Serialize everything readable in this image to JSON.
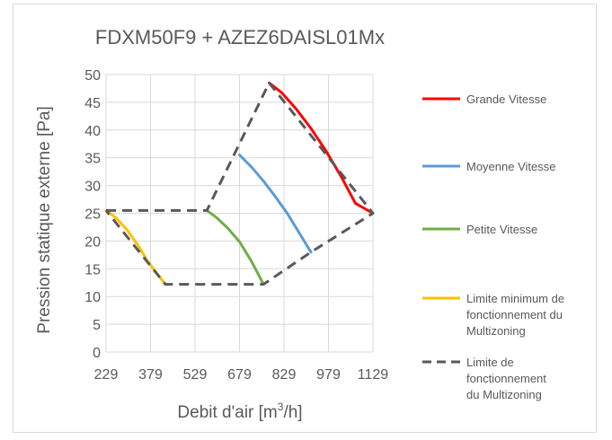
{
  "chart_data": {
    "type": "line",
    "title": "FDXM50F9 + AZEZ6DAISL01Mx",
    "xlabel": "Debit d'air [m3/h]",
    "xlabel_main": "Debit d'air [m",
    "xlabel_sup": "3",
    "xlabel_end": "/h]",
    "ylabel": "Pression statique externe [Pa]",
    "xlim": [
      229,
      1129
    ],
    "ylim": [
      0,
      50
    ],
    "xticks": [
      229,
      379,
      529,
      679,
      829,
      979,
      1129
    ],
    "yticks": [
      0,
      5,
      10,
      15,
      20,
      25,
      30,
      35,
      40,
      45,
      50
    ],
    "grid": true,
    "legend_position": "right",
    "series": [
      {
        "name": "Grande Vitesse",
        "color": "#ff0000",
        "style": "solid",
        "x": [
          779,
          820,
          870,
          920,
          970,
          1020,
          1070,
          1129
        ],
        "y": [
          48.5,
          46.8,
          43.8,
          40.3,
          36.3,
          31.8,
          26.8,
          25
        ]
      },
      {
        "name": "Moyenne Vitesse",
        "color": "#5b9bd5",
        "style": "solid",
        "x": [
          679,
          720,
          760,
          800,
          840,
          880,
          920
        ],
        "y": [
          35.5,
          33.3,
          30.8,
          28.0,
          25.0,
          21.5,
          18.0
        ]
      },
      {
        "name": "Petite Vitesse",
        "color": "#70ad47",
        "style": "solid",
        "x": [
          569,
          600,
          640,
          680,
          720,
          760
        ],
        "y": [
          25.5,
          24.3,
          22.3,
          19.8,
          16.3,
          12.2
        ]
      },
      {
        "name": "Limite minimum de fonctionnement du Multizoning",
        "color": "#ffc000",
        "style": "solid",
        "x": [
          229,
          260,
          300,
          340,
          370,
          429
        ],
        "y": [
          25.5,
          24.3,
          22.0,
          19.0,
          16.3,
          12.2
        ]
      },
      {
        "name": "Limite de fonctionnement du Multizoning",
        "color": "#595959",
        "style": "dashed",
        "x": [
          229,
          569,
          779,
          1129,
          920,
          760,
          429,
          229
        ],
        "y": [
          25.5,
          25.5,
          48.5,
          25,
          18.0,
          12.2,
          12.2,
          25.5
        ]
      }
    ]
  }
}
